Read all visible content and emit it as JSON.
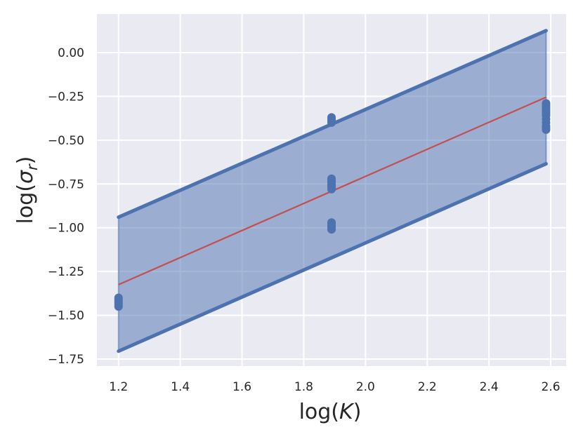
{
  "chart_data": {
    "type": "scatter",
    "xlabel": "log(K)",
    "ylabel": "log(σ_r)",
    "xlim": [
      1.13,
      2.65
    ],
    "ylim": [
      -1.79,
      0.22
    ],
    "x_ticks": [
      "1.2",
      "1.4",
      "1.6",
      "1.8",
      "2.0",
      "2.2",
      "2.4",
      "2.6"
    ],
    "y_ticks": [
      "0.00",
      "−0.25",
      "−0.50",
      "−0.75",
      "−1.00",
      "−1.25",
      "−1.50",
      "−1.75"
    ],
    "grid": true,
    "background_color": "#eaeaf2",
    "series": [
      {
        "type": "scatter",
        "color": "#4c72b0",
        "points": [
          [
            1.2,
            -1.4
          ],
          [
            1.2,
            -1.41
          ],
          [
            1.2,
            -1.42
          ],
          [
            1.2,
            -1.43
          ],
          [
            1.2,
            -1.44
          ],
          [
            1.2,
            -1.45
          ],
          [
            1.89,
            -0.37
          ],
          [
            1.89,
            -0.38
          ],
          [
            1.89,
            -0.39
          ],
          [
            1.89,
            -0.4
          ],
          [
            1.89,
            -0.72
          ],
          [
            1.89,
            -0.73
          ],
          [
            1.89,
            -0.74
          ],
          [
            1.89,
            -0.75
          ],
          [
            1.89,
            -0.76
          ],
          [
            1.89,
            -0.77
          ],
          [
            1.89,
            -0.78
          ],
          [
            1.89,
            -0.97
          ],
          [
            1.89,
            -0.98
          ],
          [
            1.89,
            -0.99
          ],
          [
            1.89,
            -1.0
          ],
          [
            1.89,
            -1.01
          ],
          [
            2.585,
            -0.29
          ],
          [
            2.585,
            -0.3
          ],
          [
            2.585,
            -0.31
          ],
          [
            2.585,
            -0.32
          ],
          [
            2.585,
            -0.33
          ],
          [
            2.585,
            -0.34
          ],
          [
            2.585,
            -0.35
          ],
          [
            2.585,
            -0.36
          ],
          [
            2.585,
            -0.38
          ],
          [
            2.585,
            -0.4
          ],
          [
            2.585,
            -0.42
          ],
          [
            2.585,
            -0.43
          ],
          [
            2.585,
            -0.44
          ]
        ]
      },
      {
        "type": "line",
        "color": "#c44e52",
        "points": [
          [
            1.2,
            -1.325
          ],
          [
            2.585,
            -0.255
          ]
        ]
      },
      {
        "type": "band",
        "color": "#4c72b0",
        "upper": [
          [
            1.2,
            -0.94
          ],
          [
            2.585,
            0.125
          ]
        ],
        "lower": [
          [
            1.2,
            -1.705
          ],
          [
            2.585,
            -0.635
          ]
        ]
      }
    ]
  }
}
